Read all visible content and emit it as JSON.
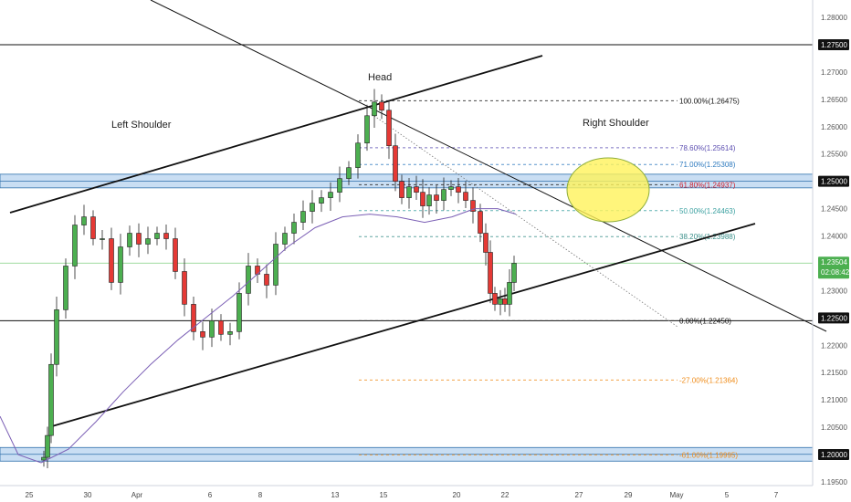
{
  "chart_data": {
    "type": "candlestick",
    "price_axis": {
      "ticks": [
        "1.28000",
        "1.27500",
        "1.27000",
        "1.26500",
        "1.26000",
        "1.25500",
        "1.25000",
        "1.24500",
        "1.24000",
        "1.23500",
        "1.23000",
        "1.22500",
        "1.22000",
        "1.21500",
        "1.21000",
        "1.20500",
        "1.20000",
        "1.19500"
      ],
      "highlight_ticks": [
        "1.27500",
        "1.25000",
        "1.22500",
        "1.20000"
      ],
      "current_price": "1.23504",
      "countdown": "02:08:42"
    },
    "time_axis": {
      "labels": [
        "25",
        "30",
        "Apr",
        "6",
        "8",
        "13",
        "15",
        "20",
        "22",
        "27",
        "29",
        "May",
        "5",
        "7"
      ]
    },
    "annotations": {
      "left_shoulder": "Left Shoulder",
      "head": "Head",
      "right_shoulder": "Right Shoulder"
    },
    "fib_levels": [
      {
        "label": "100.00%(1.26475)",
        "price": 1.26475,
        "color": "#111111"
      },
      {
        "label": "78.60%(1.25614)",
        "price": 1.25614,
        "color": "#5b4db0"
      },
      {
        "label": "71.00%(1.25308)",
        "price": 1.25308,
        "color": "#2f7bbf"
      },
      {
        "label": "61.80%(1.24937)",
        "price": 1.24937,
        "color": "#d0202f"
      },
      {
        "label": "50.00%(1.24463)",
        "price": 1.24463,
        "color": "#3aa0a0"
      },
      {
        "label": "38.20%(1.23988)",
        "price": 1.23988,
        "color": "#3a8f8a"
      },
      {
        "label": "0.00%(1.22450)",
        "price": 1.2245,
        "color": "#111111"
      },
      {
        "label": "-27.00%(1.21364)",
        "price": 1.21364,
        "color": "#ef8c1a"
      },
      {
        "label": "-61.00%(1.19995)",
        "price": 1.19995,
        "color": "#ef8c1a"
      }
    ],
    "colors": {
      "up": "#4caf50",
      "down": "#e53935",
      "moving_average": "#7b5fb5",
      "zone_fill": "#b7d3ef",
      "zone_border": "#2f6fab",
      "ellipse_fill": "#fff35a",
      "price_line": "#7fcf7f"
    }
  }
}
